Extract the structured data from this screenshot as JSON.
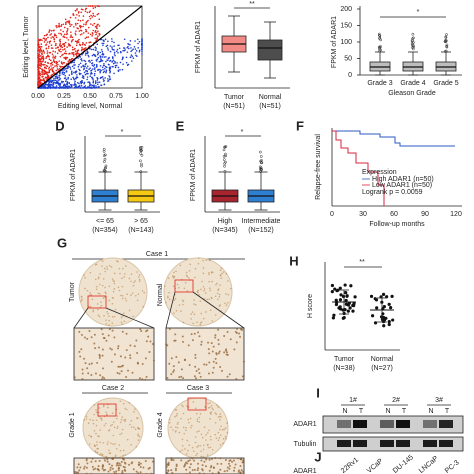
{
  "panels": {
    "A": {
      "y_label": "Editing level, Tumor",
      "x_label": "Editing level, Normal",
      "x_ticks": [
        "0.00",
        "0.25",
        "0.50",
        "0.75",
        "1.00"
      ]
    },
    "B": {
      "y_label": "FPKM of ADAR1",
      "significance": "**",
      "groups": [
        [
          "Tumor",
          "(N=51)"
        ],
        [
          "Normal",
          "(N=51)"
        ]
      ]
    },
    "C": {
      "y_label": "FPKM of ADAR1",
      "significance": "*",
      "y_ticks": [
        "0",
        "50",
        "100",
        "150",
        "200"
      ],
      "groups": [
        "Grade 3",
        "Grade 4",
        "Grade 5"
      ],
      "x_label": "Gleason Grade"
    },
    "D": {
      "letter": "D",
      "y_label": "FPKM of ADAR1",
      "significance": "*",
      "groups": [
        [
          "<= 65",
          "(N=354)"
        ],
        [
          "> 65",
          "(N=143)"
        ]
      ]
    },
    "E": {
      "letter": "E",
      "y_label": "FPKM of ADAR1",
      "significance": "*",
      "groups": [
        [
          "High",
          "(N=345)"
        ],
        [
          "Intermediate",
          "(N=152)"
        ]
      ]
    },
    "F": {
      "letter": "F",
      "y_label": "Relapse-free survival",
      "x_label": "Follow-up months",
      "x_ticks": [
        "0",
        "30",
        "60",
        "90",
        "120"
      ],
      "legend_title": "Expression",
      "legend": [
        "High ADAR1 (n=50)",
        "Low ADAR1 (n=50)"
      ],
      "stat": "Logrank p = 0.0059"
    },
    "G": {
      "letter": "G",
      "case1": "Case 1",
      "tumor": "Tumor",
      "normal": "Normal",
      "case2": "Case 2",
      "case3": "Case 3",
      "grade1": "Grade 1",
      "grade4": "Grade 4"
    },
    "H": {
      "letter": "H",
      "y_label": "H score",
      "significance": "**",
      "groups": [
        [
          "Tumor",
          "(N=38)"
        ],
        [
          "Normal",
          "(N=27)"
        ]
      ]
    },
    "I": {
      "letter": "I",
      "samples": [
        "1#",
        "2#",
        "3#"
      ],
      "lane": [
        "N",
        "T"
      ],
      "rows": [
        "ADAR1",
        "Tubulin"
      ]
    },
    "J": {
      "letter": "J",
      "cell_lines": [
        "22Rv1",
        "VCaP",
        "DU-145",
        "LNCaP",
        "PC-3"
      ],
      "row": "ADAR1"
    }
  }
}
